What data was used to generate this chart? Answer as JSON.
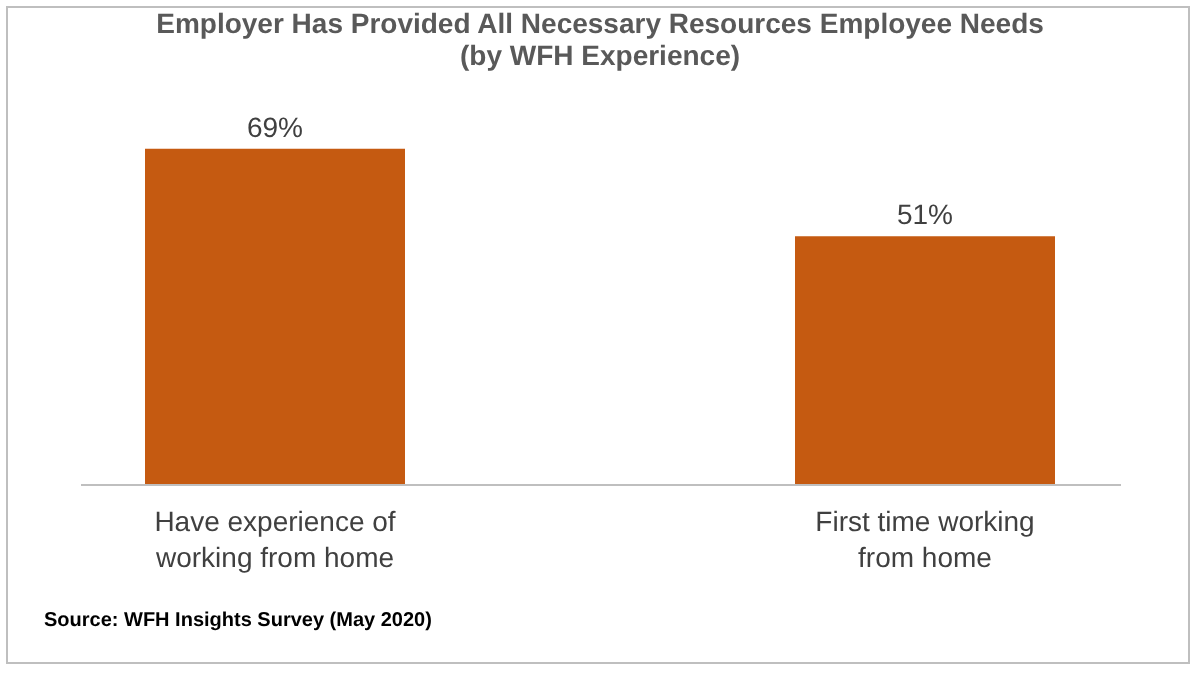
{
  "chart_data": {
    "type": "bar",
    "title": "Employer Has Provided All Necessary Resources Employee Needs (by WFH Experience)",
    "categories": [
      "Have experience of working from home",
      "First time working from home"
    ],
    "values": [
      69,
      51
    ],
    "color": "#c55a11",
    "value_labels": [
      "69%",
      "51%"
    ],
    "annotations": [
      "Source: WFH Insights Survey (May 2020)"
    ]
  }
}
